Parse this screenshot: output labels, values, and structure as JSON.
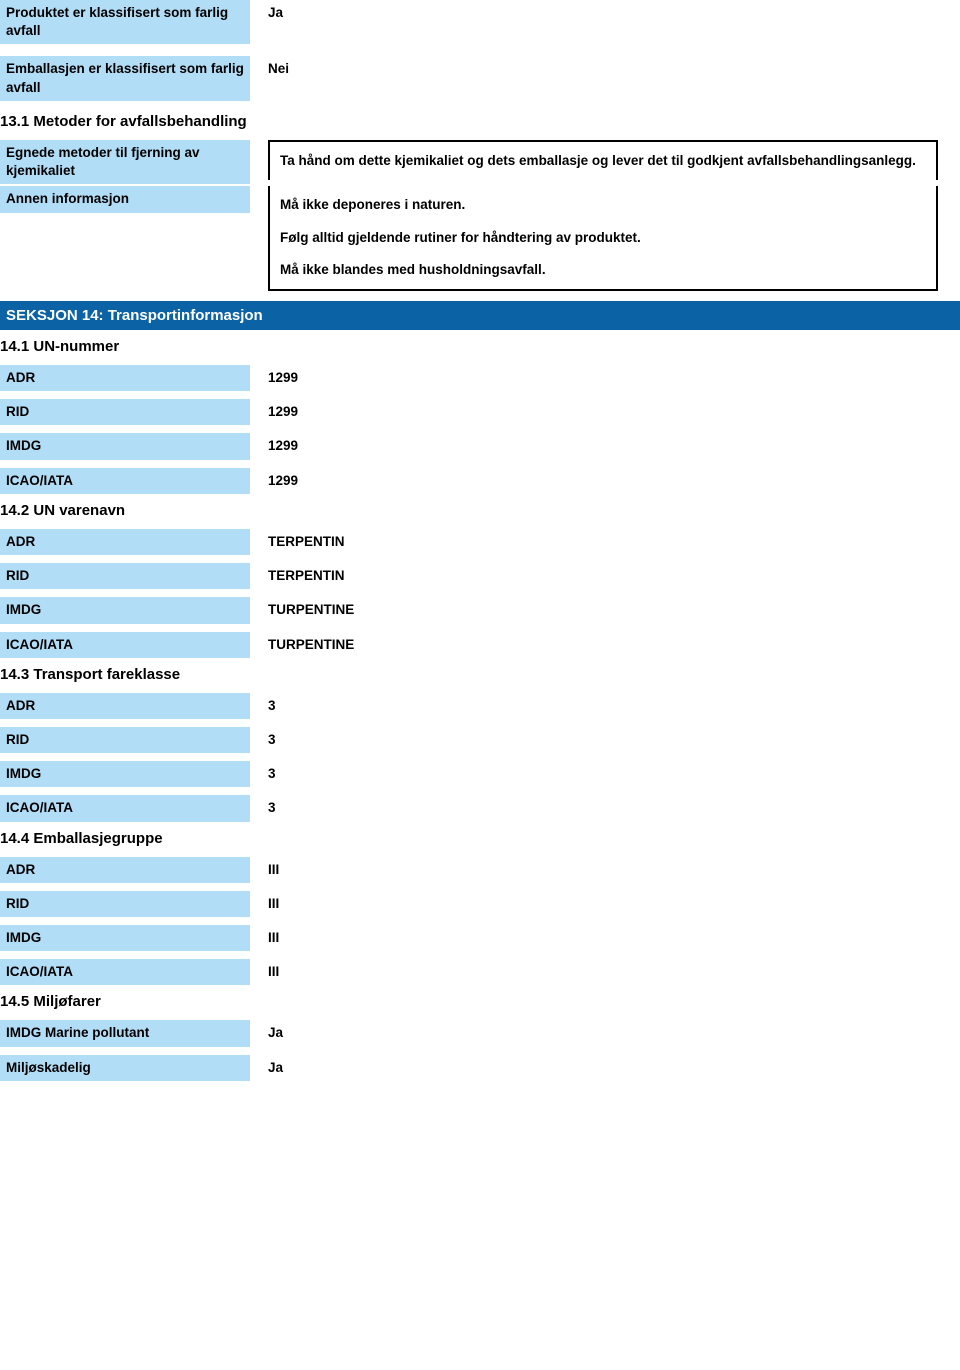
{
  "colors": {
    "label_bg": "#b2ddf6",
    "section_bg": "#0b63a5",
    "section_fg": "#ffffff",
    "text": "#000000",
    "box_border": "#000000",
    "page_bg": "#ffffff"
  },
  "top": {
    "product_classified": {
      "label": "Produktet er klassifisert som farlig avfall",
      "value": "Ja"
    },
    "packaging_classified": {
      "label": "Emballasjen er klassifisert som farlig avfall",
      "value": "Nei"
    }
  },
  "s13": {
    "heading": "13.1 Metoder for avfallsbehandling",
    "methods": {
      "label": "Egnede metoder til fjerning av kjemikaliet",
      "value": "Ta hånd om dette kjemikaliet og dets emballasje og lever det til godkjent avfallsbehandlingsanlegg."
    },
    "other_info": {
      "label": "Annen informasjon",
      "p1": "Må ikke deponeres i naturen.",
      "p2": "Følg alltid gjeldende rutiner for håndtering av produktet.",
      "p3": "Må ikke blandes med husholdningsavfall."
    }
  },
  "s14": {
    "bar": "SEKSJON 14: Transportinformasjon",
    "s14_1": {
      "heading": "14.1 UN-nummer",
      "rows": [
        {
          "label": "ADR",
          "value": "1299"
        },
        {
          "label": "RID",
          "value": "1299"
        },
        {
          "label": "IMDG",
          "value": "1299"
        },
        {
          "label": "ICAO/IATA",
          "value": "1299"
        }
      ]
    },
    "s14_2": {
      "heading": "14.2 UN varenavn",
      "rows": [
        {
          "label": "ADR",
          "value": "TERPENTIN"
        },
        {
          "label": "RID",
          "value": "TERPENTIN"
        },
        {
          "label": "IMDG",
          "value": "TURPENTINE"
        },
        {
          "label": "ICAO/IATA",
          "value": "TURPENTINE"
        }
      ]
    },
    "s14_3": {
      "heading": "14.3 Transport fareklasse",
      "rows": [
        {
          "label": "ADR",
          "value": "3"
        },
        {
          "label": "RID",
          "value": "3"
        },
        {
          "label": "IMDG",
          "value": "3"
        },
        {
          "label": "ICAO/IATA",
          "value": "3"
        }
      ]
    },
    "s14_4": {
      "heading": "14.4 Emballasjegruppe",
      "rows": [
        {
          "label": "ADR",
          "value": "III"
        },
        {
          "label": "RID",
          "value": "III"
        },
        {
          "label": "IMDG",
          "value": "III"
        },
        {
          "label": "ICAO/IATA",
          "value": "III"
        }
      ]
    },
    "s14_5": {
      "heading": "14.5 Miljøfarer",
      "rows": [
        {
          "label": "IMDG Marine pollutant",
          "value": "Ja"
        },
        {
          "label": "Miljøskadelig",
          "value": "Ja"
        }
      ]
    }
  }
}
